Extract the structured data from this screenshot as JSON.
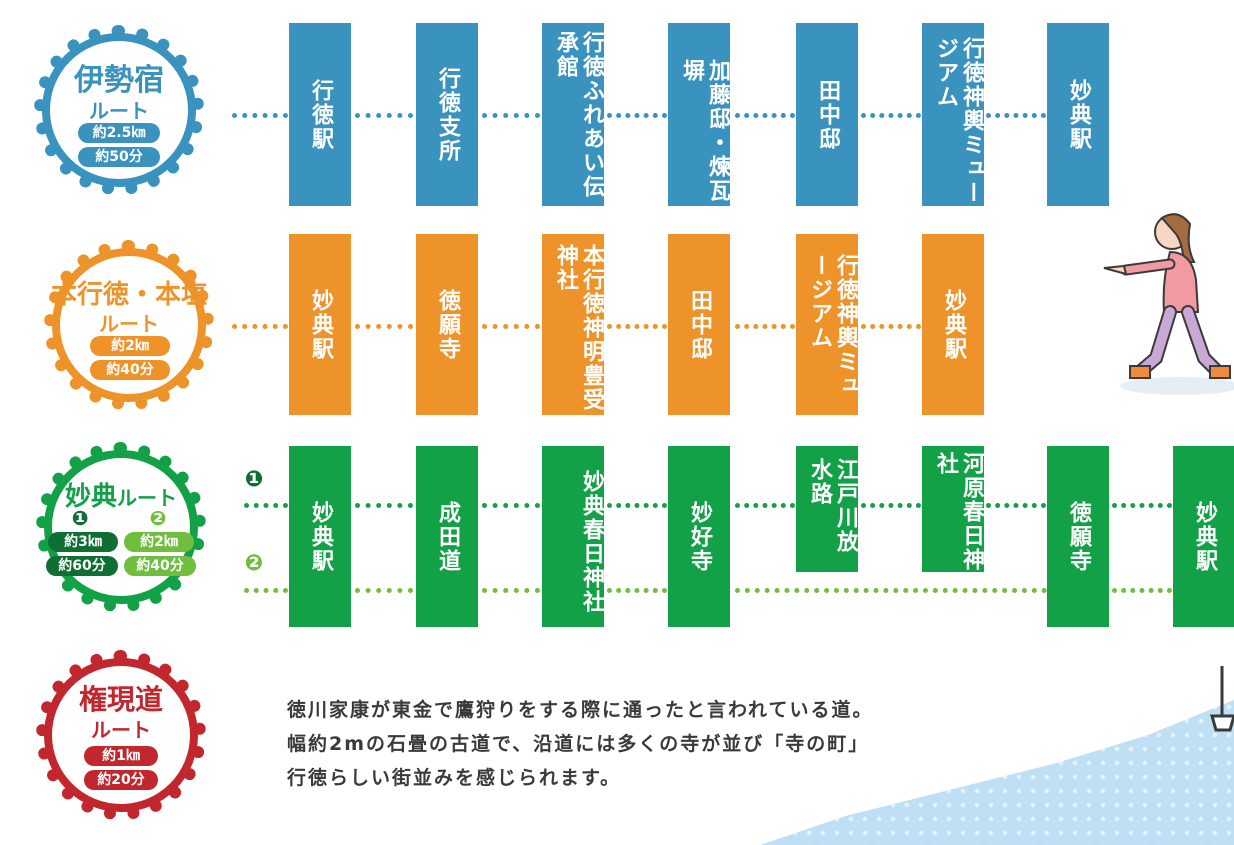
{
  "routes": {
    "ise": {
      "name": "伊勢宿",
      "sub": "ルート",
      "distance": "約2.5㎞",
      "time": "約50分",
      "color": "#3a93be",
      "stations": [
        "行徳駅",
        "行徳支所",
        "行徳ふれあい伝承館",
        "加藤邸・煉瓦塀",
        "田中邸",
        "行徳神輿ミュージアム",
        "妙典駅"
      ]
    },
    "honshio": {
      "name": "本行徳・本塩",
      "sub": "ルート",
      "distance": "約2㎞",
      "time": "約40分",
      "color": "#ee9329",
      "stations": [
        "妙典駅",
        "徳願寺",
        "本行徳神明豊受神社",
        "田中邸",
        "行徳神輿ミュージアム",
        "妙典駅"
      ]
    },
    "myoden": {
      "name": "妙典",
      "sub": "ルート",
      "num1": "❶",
      "num2": "❷",
      "distance1": "約3㎞",
      "time1": "約60分",
      "distance2": "約2㎞",
      "time2": "約40分",
      "color": "#13a148",
      "color2": "#6fbe3e",
      "stations": [
        "妙典駅",
        "成田道",
        "妙典春日神社",
        "妙好寺",
        "江戸川放水路",
        "河原春日神社",
        "徳願寺",
        "妙典駅"
      ]
    },
    "gongen": {
      "name": "権現道",
      "sub": "ルート",
      "distance": "約1㎞",
      "time": "約20分",
      "color": "#c1272d"
    }
  },
  "description": [
    "徳川家康が東金で鷹狩りをする際に通ったと言われている道。",
    "幅約2mの石畳の古道で、沿道には多くの寺が並び「寺の町」",
    "行徳らしい街並みを感じられます。"
  ]
}
